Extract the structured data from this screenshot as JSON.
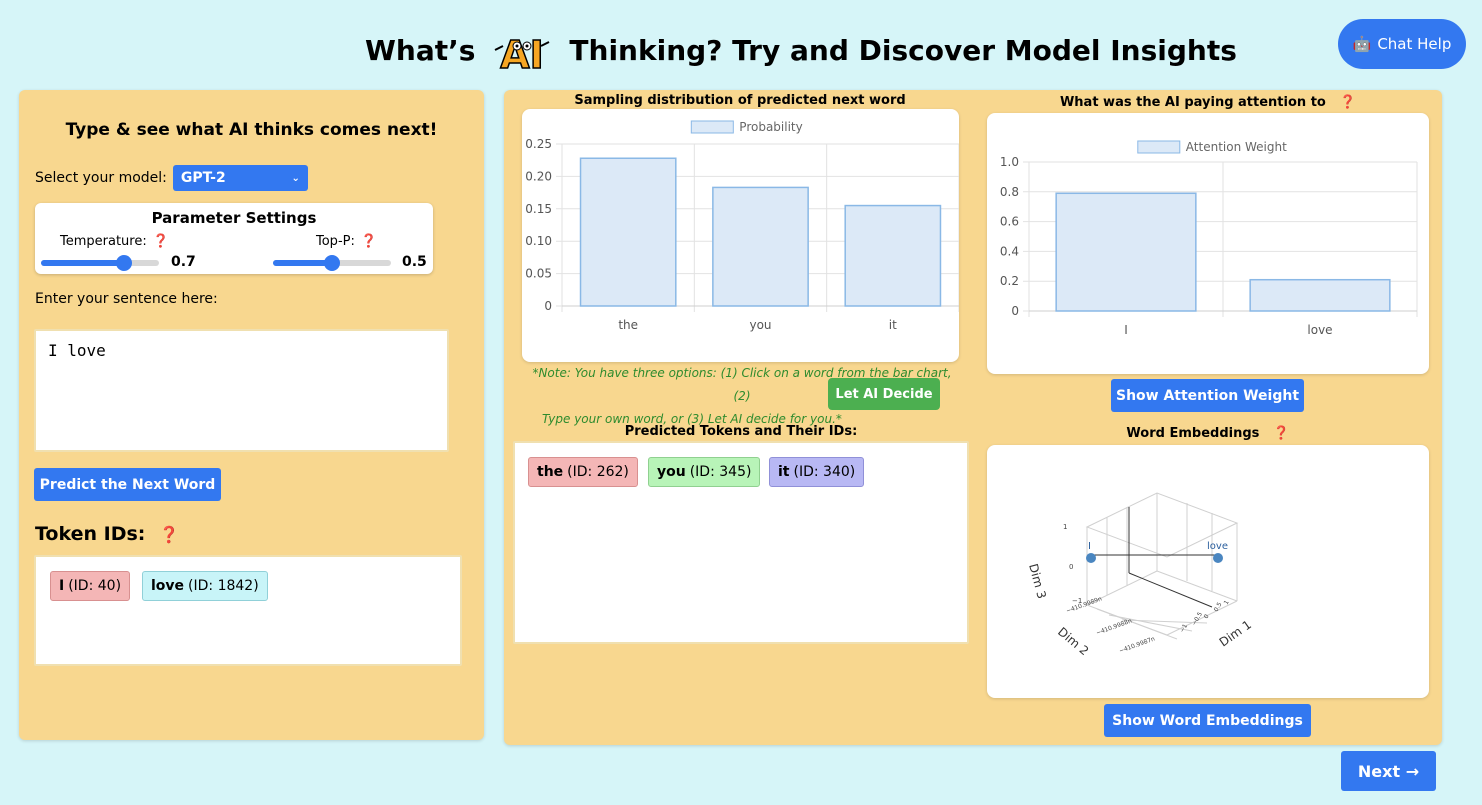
{
  "header": {
    "title_before": "What’s",
    "logo_text": "AI",
    "title_after": "Thinking? Try and Discover Model Insights",
    "chat_help_label": "Chat Help",
    "chat_help_icon": "robot-icon"
  },
  "left": {
    "title": "Type & see what AI thinks comes next!",
    "model_label": "Select your model:",
    "model_value": "GPT-2",
    "params_title": "Parameter Settings",
    "temperature_label": "Temperature:",
    "temperature_value": "0.7",
    "temperature_level": 0.7,
    "topp_label": "Top-P:",
    "topp_value": "0.5",
    "topp_level": 0.5,
    "help_icon": "❓",
    "sentence_label": "Enter your sentence here:",
    "sentence_value": "I love",
    "predict_label": "Predict the Next Word",
    "token_title": "Token IDs:",
    "tokens": [
      {
        "word": "I",
        "id": "(ID: 40)",
        "color": "#f4b6b6"
      },
      {
        "word": "love",
        "id": "(ID: 1842)",
        "color": "#c8f4f8"
      }
    ]
  },
  "right": {
    "dist_title": "Sampling distribution of predicted next word",
    "attn_title": "What was the AI paying attention to",
    "note_line1": "*Note: You have three options: (1) Click on a word from the bar chart, (2)",
    "note_line2": "Type your own word, or (3) Let AI decide for you.*",
    "let_ai_label": "Let AI Decide",
    "show_attention_label": "Show Attention Weight",
    "pred_title": "Predicted Tokens and Their IDs:",
    "pred_tokens": [
      {
        "word": "the",
        "id": "(ID: 262)",
        "color": "#f4b6b6"
      },
      {
        "word": "you",
        "id": "(ID: 345)",
        "color": "#b8f4b8"
      },
      {
        "word": "it",
        "id": "(ID: 340)",
        "color": "#b8b8f4"
      }
    ],
    "emb_title": "Word Embeddings",
    "show_emb_label": "Show Word Embeddings"
  },
  "next_label": "Next →",
  "chart_data": [
    {
      "type": "bar",
      "title": "Sampling distribution of predicted next word",
      "legend": "Probability",
      "legend_placement": "top",
      "categories": [
        "the",
        "you",
        "it"
      ],
      "values": [
        0.228,
        0.183,
        0.155
      ],
      "ylim": [
        0,
        0.25
      ],
      "yticks": [
        "0",
        "0.05",
        "0.10",
        "0.15",
        "0.20",
        "0.25"
      ],
      "grid": true
    },
    {
      "type": "bar",
      "title": "What was the AI paying attention to",
      "legend": "Attention Weight",
      "legend_placement": "top",
      "categories": [
        "I",
        "love"
      ],
      "values": [
        0.79,
        0.21
      ],
      "ylim": [
        0,
        1.0
      ],
      "yticks": [
        "0",
        "0.2",
        "0.4",
        "0.6",
        "0.8",
        "1.0"
      ],
      "grid": true
    },
    {
      "type": "scatter",
      "title": "Word Embeddings",
      "points": [
        {
          "label": "I"
        },
        {
          "label": "love"
        }
      ],
      "axes": [
        "Dim 1",
        "Dim 2",
        "Dim 3"
      ],
      "dim2_ticks": [
        "−410.9989n",
        "−410.9988n",
        "−410.9987n"
      ],
      "dim1_ticks": [
        "1",
        "0.5",
        "0",
        "−0.5",
        "−1"
      ],
      "dim3_ticks": [
        "1",
        "0",
        "−1"
      ]
    }
  ]
}
